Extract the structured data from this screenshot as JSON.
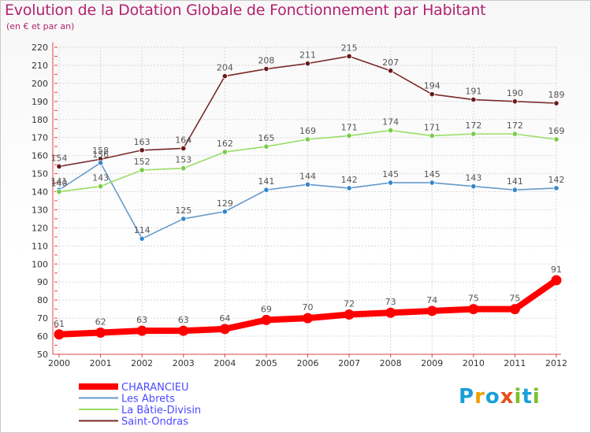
{
  "title": "Evolution de la Dotation Globale de Fonctionnement par Habitant",
  "subtitle": "(en € et par an)",
  "logo": {
    "text": "Proxiti",
    "letters": [
      "P",
      "r",
      "o",
      "x",
      "i",
      "t",
      "i"
    ],
    "colors": [
      "#1a9fd9",
      "#f0a000",
      "#1a9fd9",
      "#e8501a",
      "#7bbf2a",
      "#1a9fd9",
      "#7bbf2a"
    ]
  },
  "chart_data": {
    "type": "line",
    "title": "Evolution de la Dotation Globale de Fonctionnement par Habitant",
    "subtitle": "(en € et par an)",
    "x": [
      "2000",
      "2001",
      "2002",
      "2003",
      "2004",
      "2005",
      "2006",
      "2007",
      "2008",
      "2009",
      "2010",
      "2011",
      "2012"
    ],
    "ylim": [
      50,
      220
    ],
    "yticks": [
      50,
      60,
      70,
      80,
      90,
      100,
      110,
      120,
      130,
      140,
      150,
      160,
      170,
      180,
      190,
      200,
      210,
      220
    ],
    "grid": true,
    "legend_position": "bottom-left",
    "series": [
      {
        "name": "CHARANCIEU",
        "color": "#ff0000",
        "marker": "#ff0000",
        "values": [
          61,
          62,
          63,
          63,
          64,
          69,
          70,
          72,
          73,
          74,
          75,
          75,
          91
        ]
      },
      {
        "name": "Les Abrets",
        "color": "#6699cc",
        "marker": "#3388cc",
        "values": [
          141,
          156,
          114,
          125,
          129,
          141,
          144,
          142,
          145,
          145,
          143,
          141,
          142
        ]
      },
      {
        "name": "La Bâtie-Divisin",
        "color": "#99dd66",
        "marker": "#77cc44",
        "values": [
          140,
          143,
          152,
          153,
          162,
          165,
          169,
          171,
          174,
          171,
          172,
          172,
          169
        ]
      },
      {
        "name": "Saint-Ondras",
        "color": "#7a2a2a",
        "marker": "#6a1a1a",
        "values": [
          154,
          158,
          163,
          164,
          204,
          208,
          211,
          215,
          207,
          194,
          191,
          190,
          189
        ]
      }
    ],
    "data_labels": [
      [
        "61",
        "62",
        "63",
        "63",
        "64",
        "69",
        "70",
        "72",
        "73",
        "74",
        "75",
        "75",
        "91"
      ],
      [
        "141",
        "156",
        "114",
        "125",
        "129",
        "141",
        "144",
        "142",
        "145",
        "145",
        "143",
        "141",
        "142"
      ],
      [
        "140",
        "143",
        "152",
        "153",
        "162",
        "165",
        "169",
        "171",
        "174",
        "171",
        "172",
        "172",
        "169"
      ],
      [
        "154",
        "158",
        "163",
        "164",
        "204",
        "208",
        "211",
        "215",
        "207",
        "194",
        "191",
        "190",
        "189"
      ]
    ]
  }
}
